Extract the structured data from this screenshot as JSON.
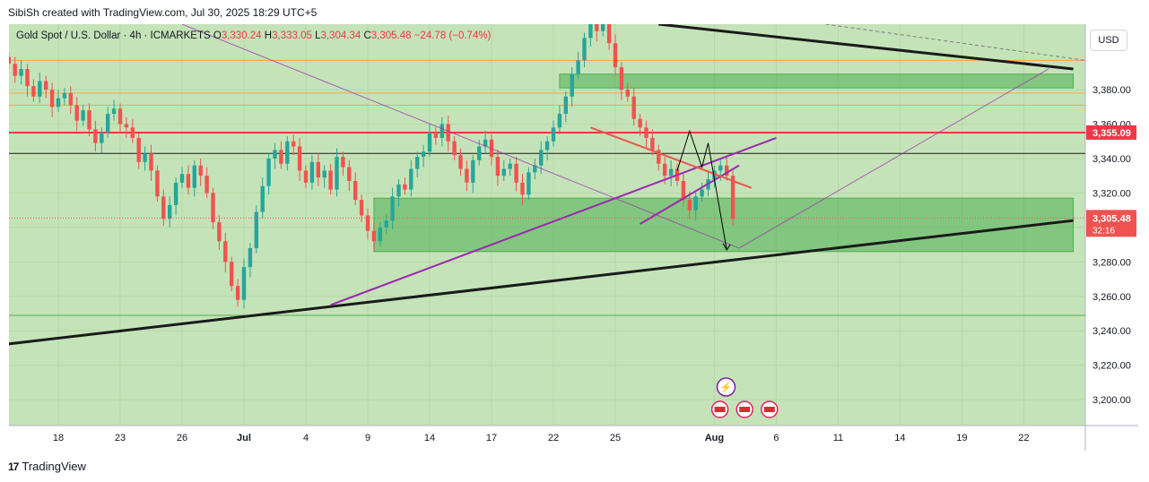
{
  "header": {
    "attribution": "SibiSh created with TradingView.com, Jul 30, 2025 18:29 UTC+5"
  },
  "legend": {
    "symbol": "Gold Spot / U.S. Dollar · 4h · ICMARKETS",
    "o_label": "O",
    "o_value": "3,330.24",
    "h_label": "H",
    "h_value": "3,333.05",
    "l_label": "L",
    "l_value": "3,304.34",
    "c_label": "C",
    "c_value": "3,305.48",
    "change": "−24.78 (−0.74%)"
  },
  "currency": "USD",
  "footer": {
    "brand": "TradingView"
  },
  "colors": {
    "background": "#ffffff",
    "chart_bg": "#c5e3b8",
    "up": "#26a69a",
    "down": "#ef5350",
    "red_level": "#f23645",
    "zone": "#4caf50",
    "purple": "#9c27b0",
    "trend": "#1a1a1a",
    "orange_line": "#f7a54a"
  },
  "chart_data": {
    "type": "candlestick",
    "timeframe": "4h",
    "symbol": "XAUUSD",
    "ylim": [
      3185,
      3418
    ],
    "y_ticks": [
      3380,
      3360,
      3340,
      3320,
      3300,
      3280,
      3260,
      3240,
      3220,
      3200
    ],
    "y_tick_labels": [
      "3,380.00",
      "3,360.00",
      "3,340.00",
      "3,320.00",
      "3,300.00",
      "3,280.00",
      "3,260.00",
      "3,240.00",
      "3,220.00",
      "3,200.00"
    ],
    "x_ticks": [
      {
        "label": "18",
        "i": 8
      },
      {
        "label": "23",
        "i": 18
      },
      {
        "label": "26",
        "i": 28
      },
      {
        "label": "Jul",
        "i": 38
      },
      {
        "label": "4",
        "i": 48
      },
      {
        "label": "9",
        "i": 58
      },
      {
        "label": "14",
        "i": 68
      },
      {
        "label": "17",
        "i": 78
      },
      {
        "label": "22",
        "i": 88
      },
      {
        "label": "25",
        "i": 98
      },
      {
        "label": "Aug",
        "i": 114
      },
      {
        "label": "6",
        "i": 124
      },
      {
        "label": "11",
        "i": 134
      },
      {
        "label": "14",
        "i": 144
      },
      {
        "label": "19",
        "i": 154
      },
      {
        "label": "22",
        "i": 164
      }
    ],
    "closes": [
      3395,
      3388,
      3392,
      3382,
      3376,
      3385,
      3380,
      3370,
      3375,
      3378,
      3371,
      3362,
      3368,
      3357,
      3349,
      3355,
      3366,
      3369,
      3360,
      3358,
      3352,
      3338,
      3343,
      3333,
      3318,
      3305,
      3313,
      3326,
      3331,
      3323,
      3336,
      3330,
      3320,
      3303,
      3292,
      3280,
      3266,
      3258,
      3277,
      3288,
      3309,
      3324,
      3340,
      3345,
      3337,
      3350,
      3347,
      3333,
      3326,
      3338,
      3329,
      3333,
      3322,
      3341,
      3335,
      3327,
      3316,
      3307,
      3298,
      3292,
      3300,
      3304,
      3318,
      3325,
      3322,
      3334,
      3341,
      3344,
      3355,
      3352,
      3360,
      3350,
      3342,
      3334,
      3326,
      3339,
      3347,
      3351,
      3341,
      3330,
      3334,
      3337,
      3326,
      3319,
      3332,
      3336,
      3345,
      3350,
      3358,
      3366,
      3376,
      3389,
      3397,
      3410,
      3428,
      3414,
      3424,
      3407,
      3393,
      3380,
      3376,
      3363,
      3358,
      3352,
      3345,
      3337,
      3330,
      3334,
      3327,
      3316,
      3310,
      3318,
      3322,
      3328,
      3333,
      3336,
      3330,
      3305
    ],
    "current_price": "3,305.48",
    "countdown": "32:16",
    "levels": [
      {
        "price": 3397,
        "color": "orange_line"
      },
      {
        "price": 3378,
        "color": "orange_line"
      },
      {
        "price": 3371,
        "color": "orange_line"
      },
      {
        "price": 3355.09,
        "label": "3,355.09",
        "color": "red_level"
      },
      {
        "price": 3343,
        "color": "trend"
      },
      {
        "price": 3249,
        "color": "zone"
      }
    ],
    "zones": [
      {
        "i_start": 59,
        "i_end": 172,
        "p_top": 3317,
        "p_bottom": 3286
      },
      {
        "i_start": 89,
        "i_end": 172,
        "p_top": 3389,
        "p_bottom": 3381
      }
    ],
    "trendlines": [
      {
        "i1": -1,
        "p1": 3232,
        "i2": 172,
        "p2": 3304,
        "color": "trend",
        "width": 3
      },
      {
        "i1": 105,
        "p1": 3418,
        "i2": 172,
        "p2": 3392,
        "color": "trend",
        "width": 3
      },
      {
        "i1": 52,
        "p1": 3255,
        "i2": 124,
        "p2": 3352,
        "color": "purple",
        "width": 2
      },
      {
        "i1": 102,
        "p1": 3302,
        "i2": 118,
        "p2": 3336,
        "color": "purple",
        "width": 2
      },
      {
        "i1": 94,
        "p1": 3358,
        "i2": 120,
        "p2": 3323,
        "color": "down",
        "width": 2
      },
      {
        "i1": 28,
        "p1": 3418,
        "i2": 118,
        "p2": 3288,
        "color": "purple",
        "width": 1
      },
      {
        "i1": 118,
        "p1": 3288,
        "i2": 168,
        "p2": 3392,
        "color": "purple",
        "width": 1
      }
    ],
    "projection": [
      [
        108,
        3333
      ],
      [
        110,
        3356
      ],
      [
        112,
        3335
      ],
      [
        113,
        3349
      ],
      [
        116,
        3287
      ]
    ]
  }
}
